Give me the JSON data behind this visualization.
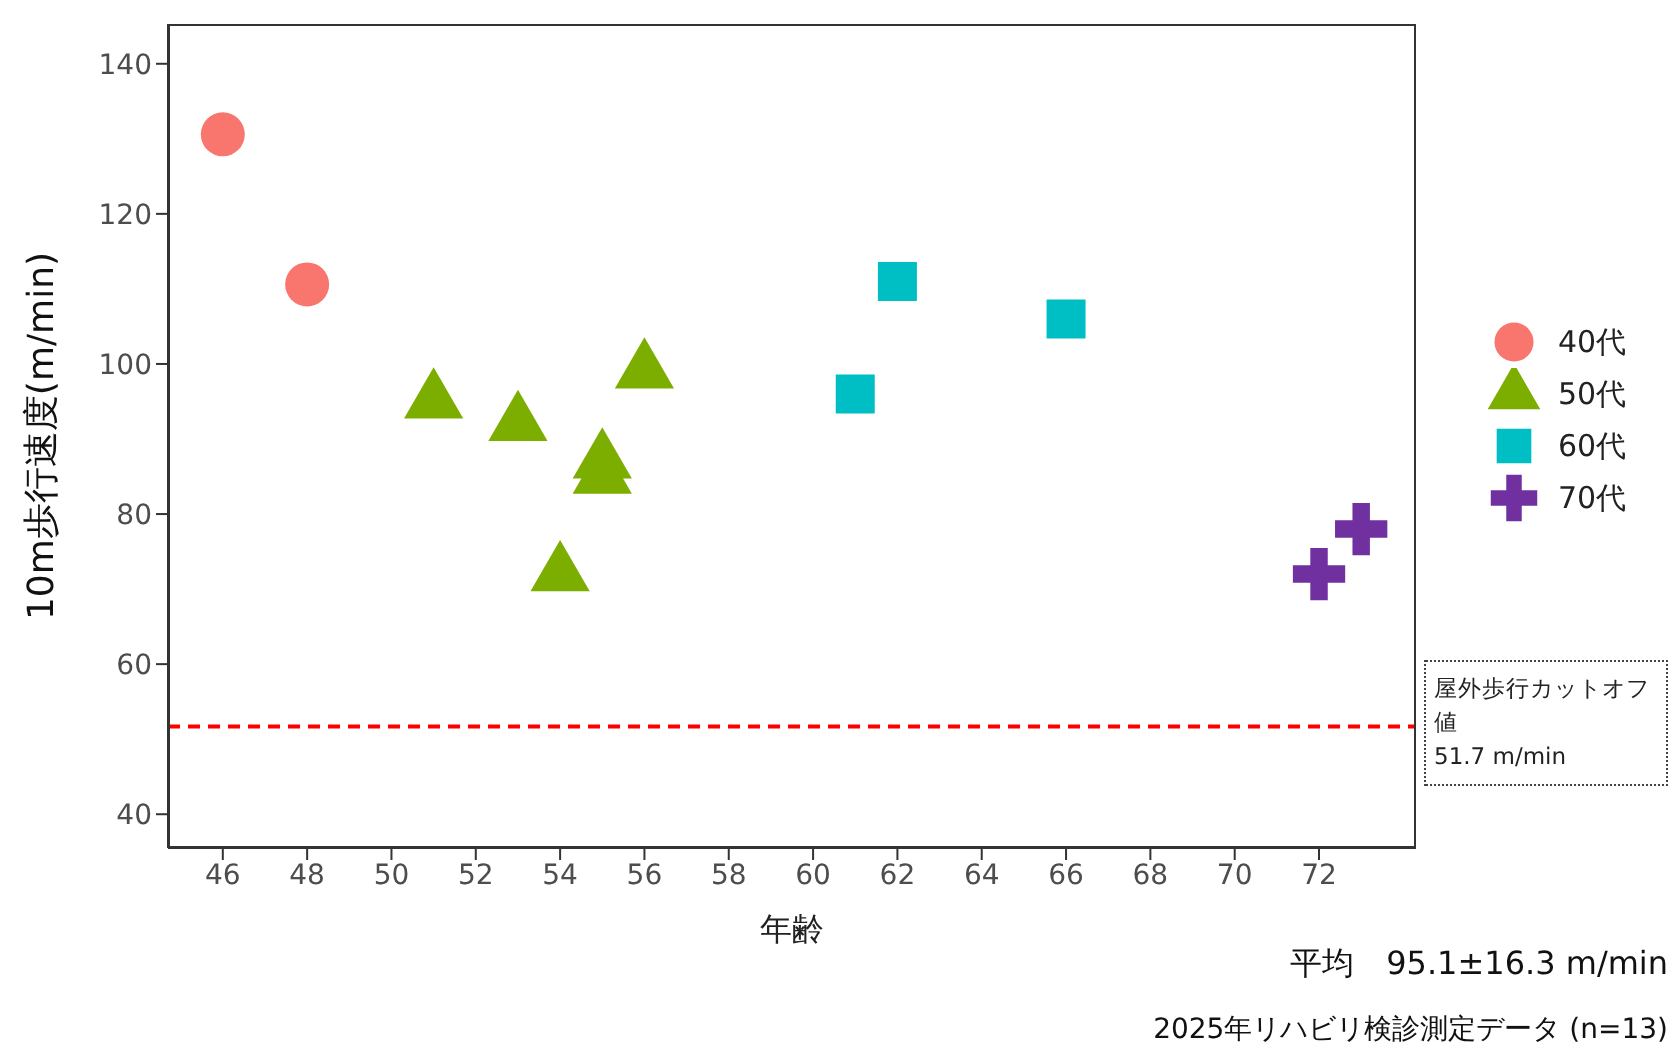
{
  "chart_data": {
    "type": "scatter",
    "xlabel": "年齢",
    "ylabel": "10m歩行速度(m/min)",
    "xlim": [
      44.7,
      74.3
    ],
    "ylim": [
      35.5,
      145.3
    ],
    "xticks": [
      46,
      48,
      50,
      52,
      54,
      56,
      58,
      60,
      62,
      64,
      66,
      68,
      70,
      72
    ],
    "yticks": [
      40,
      60,
      80,
      100,
      120,
      140
    ],
    "legend": "right",
    "series": [
      {
        "name": "40代",
        "color": "#f8766d",
        "marker": "circle",
        "x": [
          46,
          48
        ],
        "values": [
          130.6,
          110.6
        ]
      },
      {
        "name": "50代",
        "color": "#7cae00",
        "marker": "triangle",
        "x": [
          51,
          53,
          54,
          55,
          55,
          56
        ],
        "values": [
          95,
          92,
          72,
          87,
          85,
          99
        ]
      },
      {
        "name": "60代",
        "color": "#00bfc4",
        "marker": "square",
        "x": [
          61,
          62,
          66
        ],
        "values": [
          96,
          111,
          106
        ]
      },
      {
        "name": "70代",
        "color": "#7030a0",
        "marker": "cross",
        "x": [
          72,
          73
        ],
        "values": [
          72,
          78
        ]
      }
    ],
    "ref_lines": [
      {
        "axis": "y",
        "value": 51.7,
        "label": "屋外歩行カットオフ値\n51.7 m/min",
        "color": "#ff0000",
        "line_style": "dashed"
      }
    ],
    "annotations": [
      "平均　95.1±16.3 m/min",
      "2025年リハビリ検診測定データ (n=13)"
    ]
  }
}
